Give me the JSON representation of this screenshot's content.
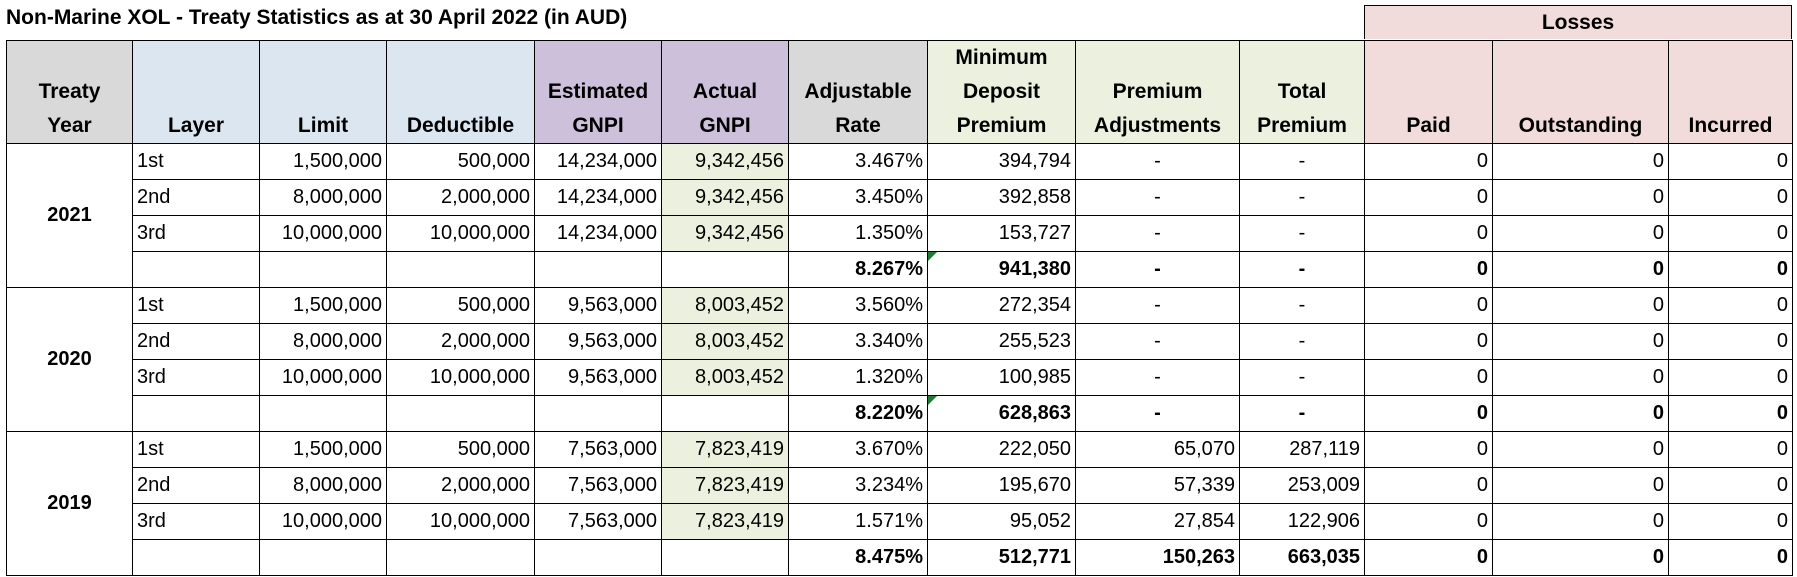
{
  "title": "Non-Marine XOL - Treaty Statistics  as at 30 April 2022 (in AUD)",
  "group_header": "Losses",
  "headers": {
    "treaty_year": [
      "Treaty",
      "Year"
    ],
    "layer": "Layer",
    "limit": "Limit",
    "deductible": "Deductible",
    "estimated_gnpi": [
      "Estimated",
      "GNPI"
    ],
    "actual_gnpi": [
      "Actual",
      "GNPI"
    ],
    "adjustable_rate": [
      "Adjustable",
      "Rate"
    ],
    "min_deposit_premium": [
      "Minimum",
      "Deposit",
      "Premium"
    ],
    "premium_adjustments": [
      "Premium",
      "Adjustments"
    ],
    "total_premium": [
      "Total",
      "Premium"
    ],
    "paid": "Paid",
    "outstanding": "Outstanding",
    "incurred": "Incurred"
  },
  "years": [
    {
      "year": "2021",
      "rows": [
        {
          "layer": "1st",
          "limit": "1,500,000",
          "deductible": "500,000",
          "est_gnpi": "14,234,000",
          "act_gnpi": "9,342,456",
          "rate": "3.467%",
          "mdp": "394,794",
          "adj": "-",
          "total": "-",
          "paid": "0",
          "outstanding": "0",
          "incurred": "0"
        },
        {
          "layer": "2nd",
          "limit": "8,000,000",
          "deductible": "2,000,000",
          "est_gnpi": "14,234,000",
          "act_gnpi": "9,342,456",
          "rate": "3.450%",
          "mdp": "392,858",
          "adj": "-",
          "total": "-",
          "paid": "0",
          "outstanding": "0",
          "incurred": "0"
        },
        {
          "layer": "3rd",
          "limit": "10,000,000",
          "deductible": "10,000,000",
          "est_gnpi": "14,234,000",
          "act_gnpi": "9,342,456",
          "rate": "1.350%",
          "mdp": "153,727",
          "adj": "-",
          "total": "-",
          "paid": "0",
          "outstanding": "0",
          "incurred": "0"
        }
      ],
      "total": {
        "rate": "8.267%",
        "mdp": "941,380",
        "adj": "-",
        "total": "-",
        "paid": "0",
        "outstanding": "0",
        "incurred": "0"
      }
    },
    {
      "year": "2020",
      "rows": [
        {
          "layer": "1st",
          "limit": "1,500,000",
          "deductible": "500,000",
          "est_gnpi": "9,563,000",
          "act_gnpi": "8,003,452",
          "rate": "3.560%",
          "mdp": "272,354",
          "adj": "-",
          "total": "-",
          "paid": "0",
          "outstanding": "0",
          "incurred": "0"
        },
        {
          "layer": "2nd",
          "limit": "8,000,000",
          "deductible": "2,000,000",
          "est_gnpi": "9,563,000",
          "act_gnpi": "8,003,452",
          "rate": "3.340%",
          "mdp": "255,523",
          "adj": "-",
          "total": "-",
          "paid": "0",
          "outstanding": "0",
          "incurred": "0"
        },
        {
          "layer": "3rd",
          "limit": "10,000,000",
          "deductible": "10,000,000",
          "est_gnpi": "9,563,000",
          "act_gnpi": "8,003,452",
          "rate": "1.320%",
          "mdp": "100,985",
          "adj": "-",
          "total": "-",
          "paid": "0",
          "outstanding": "0",
          "incurred": "0"
        }
      ],
      "total": {
        "rate": "8.220%",
        "mdp": "628,863",
        "adj": "-",
        "total": "-",
        "paid": "0",
        "outstanding": "0",
        "incurred": "0"
      }
    },
    {
      "year": "2019",
      "rows": [
        {
          "layer": "1st",
          "limit": "1,500,000",
          "deductible": "500,000",
          "est_gnpi": "7,563,000",
          "act_gnpi": "7,823,419",
          "rate": "3.670%",
          "mdp": "222,050",
          "adj": "65,070",
          "total": "287,119",
          "paid": "0",
          "outstanding": "0",
          "incurred": "0"
        },
        {
          "layer": "2nd",
          "limit": "8,000,000",
          "deductible": "2,000,000",
          "est_gnpi": "7,563,000",
          "act_gnpi": "7,823,419",
          "rate": "3.234%",
          "mdp": "195,670",
          "adj": "57,339",
          "total": "253,009",
          "paid": "0",
          "outstanding": "0",
          "incurred": "0"
        },
        {
          "layer": "3rd",
          "limit": "10,000,000",
          "deductible": "10,000,000",
          "est_gnpi": "7,563,000",
          "act_gnpi": "7,823,419",
          "rate": "1.571%",
          "mdp": "95,052",
          "adj": "27,854",
          "total": "122,906",
          "paid": "0",
          "outstanding": "0",
          "incurred": "0"
        }
      ],
      "total": {
        "rate": "8.475%",
        "mdp": "512,771",
        "adj": "150,263",
        "total": "663,035",
        "paid": "0",
        "outstanding": "0",
        "incurred": "0"
      }
    }
  ]
}
